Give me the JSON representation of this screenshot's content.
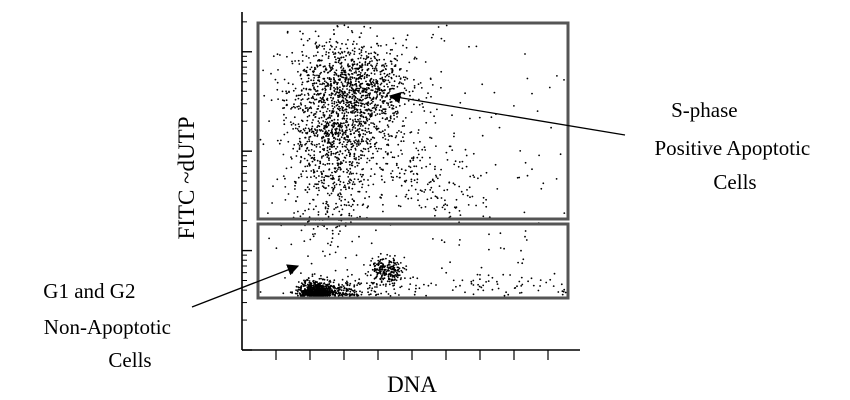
{
  "chart_data": {
    "type": "scatter",
    "title": "",
    "xlabel": "DNA",
    "ylabel": "FITC ~dUTP",
    "y_scale": "log",
    "x_tick_labels": [],
    "y_tick_labels": [],
    "grid": false,
    "legend": "none",
    "populations": [
      {
        "name": "G1/G2 non-apoptotic cluster",
        "x": 0.22,
        "y_decade": 0.5,
        "density": "very high"
      },
      {
        "name": "G2 non-apoptotic cluster",
        "x": 0.43,
        "y_decade": 0.8,
        "density": "medium"
      },
      {
        "name": "S-phase apoptotic cluster",
        "x": 0.33,
        "y_decade": 2.6,
        "density": "high"
      }
    ],
    "gates": [
      {
        "name": "upper-gate",
        "population": "apoptotic"
      },
      {
        "name": "lower-gate",
        "population": "non-apoptotic"
      }
    ],
    "annotations": [
      {
        "lines": [
          "S-phase",
          "Positive Apoptotic",
          "Cells"
        ],
        "points_to": "S-phase apoptotic cluster"
      },
      {
        "lines": [
          "G1 and G2",
          "Non-Apoptotic",
          "Cells"
        ],
        "points_to": "G1/G2 non-apoptotic cluster"
      }
    ],
    "colors": {
      "points": "#000000",
      "gates": "#555555",
      "axes": "#000000"
    }
  }
}
